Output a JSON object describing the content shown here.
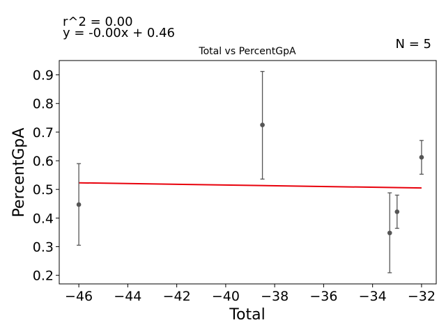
{
  "chart_data": {
    "type": "scatter",
    "title": "Total vs PercentGpA",
    "xlabel": "Total",
    "ylabel": "PercentGpA",
    "xlim": [
      -46.8,
      -31.4
    ],
    "ylim": [
      0.17,
      0.95
    ],
    "xticks": [
      -46,
      -44,
      -42,
      -40,
      -38,
      -36,
      -34,
      -32
    ],
    "xtick_labels": [
      "−46",
      "−44",
      "−42",
      "−40",
      "−38",
      "−36",
      "−34",
      "−32"
    ],
    "yticks": [
      0.2,
      0.3,
      0.4,
      0.5,
      0.6,
      0.7,
      0.8,
      0.9
    ],
    "ytick_labels": [
      "0.2",
      "0.3",
      "0.4",
      "0.5",
      "0.6",
      "0.7",
      "0.8",
      "0.9"
    ],
    "grid": false,
    "points": [
      {
        "x": -46.0,
        "y": 0.447,
        "err_low": 0.305,
        "err_high": 0.59
      },
      {
        "x": -38.5,
        "y": 0.725,
        "err_low": 0.536,
        "err_high": 0.912
      },
      {
        "x": -33.3,
        "y": 0.348,
        "err_low": 0.209,
        "err_high": 0.488
      },
      {
        "x": -33.0,
        "y": 0.422,
        "err_low": 0.364,
        "err_high": 0.48
      },
      {
        "x": -32.0,
        "y": 0.612,
        "err_low": 0.553,
        "err_high": 0.671
      }
    ],
    "fit_line": {
      "x": [
        -46.0,
        -32.0
      ],
      "y": [
        0.523,
        0.505
      ]
    },
    "annotations": {
      "r_squared": "r^2 = 0.00",
      "equation": "y = -0.00x + 0.46",
      "n": "N = 5"
    },
    "colors": {
      "points": "#555555",
      "fit": "#e8000b",
      "axes": "#000000"
    }
  }
}
